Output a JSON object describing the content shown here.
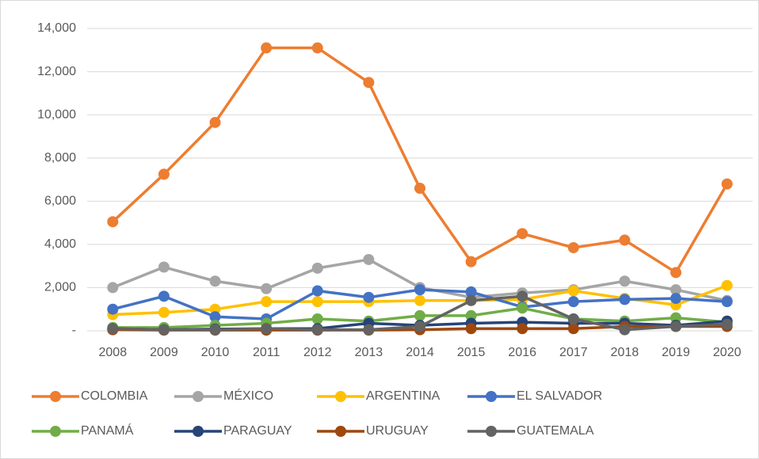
{
  "chart_data": {
    "type": "line",
    "categories": [
      "2008",
      "2009",
      "2010",
      "2011",
      "2012",
      "2013",
      "2014",
      "2015",
      "2016",
      "2017",
      "2018",
      "2019",
      "2020"
    ],
    "series": [
      {
        "name": "COLOMBIA",
        "color": "#ed7d31",
        "values": [
          5050,
          7250,
          9650,
          13100,
          13100,
          11500,
          6600,
          3200,
          4500,
          3850,
          4200,
          2700,
          6800
        ]
      },
      {
        "name": "MÉXICO",
        "color": "#a5a5a5",
        "values": [
          2000,
          2950,
          2300,
          1950,
          2900,
          3300,
          2000,
          1550,
          1750,
          1900,
          2300,
          1900,
          1400
        ]
      },
      {
        "name": "ARGENTINA",
        "color": "#ffc000",
        "values": [
          750,
          850,
          1000,
          1350,
          1350,
          1350,
          1400,
          1400,
          1450,
          1850,
          1500,
          1200,
          2100
        ]
      },
      {
        "name": "EL SALVADOR",
        "color": "#4472c4",
        "values": [
          1000,
          1600,
          650,
          550,
          1850,
          1550,
          1900,
          1800,
          1100,
          1350,
          1450,
          1500,
          1350
        ]
      },
      {
        "name": "PANAMÁ",
        "color": "#70ad47",
        "values": [
          150,
          150,
          250,
          350,
          550,
          450,
          700,
          700,
          1050,
          550,
          450,
          600,
          400
        ]
      },
      {
        "name": "PARAGUAY",
        "color": "#264478",
        "values": [
          100,
          50,
          80,
          100,
          100,
          350,
          250,
          350,
          400,
          350,
          350,
          250,
          450
        ]
      },
      {
        "name": "URUGUAY",
        "color": "#9e480e",
        "values": [
          50,
          30,
          30,
          30,
          30,
          30,
          50,
          100,
          100,
          100,
          200,
          200,
          200
        ]
      },
      {
        "name": "GUATEMALA",
        "color": "#636363",
        "values": [
          100,
          50,
          50,
          100,
          50,
          50,
          200,
          1400,
          1600,
          550,
          50,
          200,
          300
        ]
      }
    ],
    "ylim": [
      0,
      14000
    ],
    "yticks": [
      {
        "value": 0,
        "label": "-"
      },
      {
        "value": 2000,
        "label": "2,000"
      },
      {
        "value": 4000,
        "label": "4,000"
      },
      {
        "value": 6000,
        "label": "6,000"
      },
      {
        "value": 8000,
        "label": "8,000"
      },
      {
        "value": 10000,
        "label": "10,000"
      },
      {
        "value": 12000,
        "label": "12,000"
      },
      {
        "value": 14000,
        "label": "14,000"
      }
    ],
    "grid": true,
    "legend": "bottom"
  }
}
